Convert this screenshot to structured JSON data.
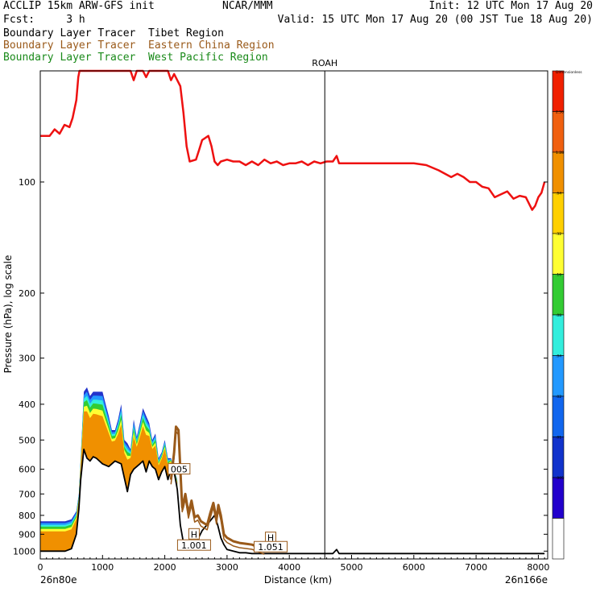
{
  "header": {
    "line1_left": "ACCLIP 15km ARW-GFS init",
    "line1_center": "NCAR/MMM",
    "line1_right": "Init: 12 UTC Mon 17 Aug 20",
    "line2_left": "Fcst:     3 h",
    "line2_right": "Valid: 15 UTC Mon 17 Aug 20 (00 JST Tue 18 Aug 20)",
    "legend": [
      {
        "prefix": "Boundary Layer Tracer",
        "region": "Tibet Region",
        "color": "#000000"
      },
      {
        "prefix": "Boundary Layer Tracer",
        "region": "Eastern China Region",
        "color": "#9a5a1a"
      },
      {
        "prefix": "Boundary Layer Tracer",
        "region": "West Pacific Region",
        "color": "#1a8a1a"
      }
    ]
  },
  "chart_data": {
    "type": "area",
    "xlabel": "Distance (km)",
    "ylabel": "Pressure (hPa), log scale",
    "xlim": [
      0,
      8150
    ],
    "ylim": [
      1050,
      50
    ],
    "y_scale": "log",
    "x_ticks": [
      "0",
      "1000",
      "2000",
      "3000",
      "4000",
      "5000",
      "6000",
      "7000",
      "8000"
    ],
    "y_ticks": [
      "100",
      "200",
      "300",
      "400",
      "500",
      "600",
      "700",
      "800",
      "900",
      "1000"
    ],
    "start_label": "26n80e",
    "end_label": "26n166e",
    "marker": {
      "label": "ROAH",
      "x": 4570
    },
    "tropopause_line": {
      "color": "#ee1111",
      "x": [
        0,
        150,
        230,
        310,
        390,
        470,
        520,
        580,
        610,
        630,
        650,
        700,
        800,
        900,
        1000,
        1100,
        1200,
        1300,
        1450,
        1500,
        1550,
        1600,
        1650,
        1700,
        1750,
        1800,
        1900,
        2000,
        2050,
        2100,
        2150,
        2200,
        2250,
        2300,
        2350,
        2400,
        2500,
        2550,
        2600,
        2700,
        2750,
        2800,
        2850,
        2900,
        3000,
        3100,
        3200,
        3300,
        3400,
        3500,
        3600,
        3700,
        3800,
        3900,
        4000,
        4100,
        4200,
        4300,
        4400,
        4500,
        4600,
        4700,
        4760,
        4800,
        4850,
        4900,
        5000,
        5200,
        5400,
        5600,
        5800,
        6000,
        6200,
        6400,
        6600,
        6700,
        6800,
        6900,
        7000,
        7100,
        7200,
        7300,
        7400,
        7500,
        7600,
        7700,
        7800,
        7900,
        7950,
        8000,
        8050,
        8100
      ],
      "y": [
        75,
        75,
        72,
        74,
        70,
        71,
        67,
        60,
        52,
        50,
        50,
        50,
        50,
        50,
        50,
        50,
        50,
        50,
        50,
        53,
        50,
        50,
        50,
        52,
        50,
        50,
        50,
        50,
        50,
        53,
        51,
        53,
        55,
        65,
        80,
        88,
        87,
        82,
        77,
        75,
        80,
        88,
        90,
        88,
        87,
        88,
        88,
        90,
        88,
        90,
        87,
        89,
        88,
        90,
        89,
        89,
        88,
        90,
        88,
        89,
        88,
        88,
        85,
        89,
        89,
        89,
        89,
        89,
        89,
        89,
        89,
        89,
        90,
        93,
        97,
        95,
        97,
        100,
        100,
        103,
        104,
        110,
        108,
        106,
        111,
        109,
        110,
        119,
        116,
        110,
        107,
        100
      ]
    },
    "series": [
      {
        "name": "Tibet Region",
        "color": "#000000",
        "x": [
          0,
          200,
          400,
          500,
          580,
          620,
          650,
          700,
          750,
          800,
          850,
          900,
          950,
          1000,
          1100,
          1200,
          1300,
          1400,
          1450,
          1500,
          1550,
          1600,
          1650,
          1700,
          1750,
          1800,
          1850,
          1900,
          1950,
          2000,
          2050,
          2100,
          2150,
          2200,
          2250,
          2300,
          2350,
          2400,
          2500,
          2600,
          2700,
          2800,
          2850,
          2900,
          2950,
          3000,
          3100,
          3200,
          3300,
          3400,
          3500,
          3600,
          3800,
          4000,
          4200,
          4400,
          4600,
          4700,
          4760,
          4800,
          4900,
          5200,
          5600,
          6000,
          6400,
          6800,
          7200,
          7600,
          8000,
          8100
        ],
        "y": [
          1000,
          1000,
          1000,
          985,
          900,
          770,
          640,
          530,
          560,
          570,
          555,
          560,
          570,
          580,
          590,
          570,
          580,
          690,
          620,
          600,
          590,
          580,
          570,
          610,
          570,
          590,
          600,
          640,
          610,
          590,
          640,
          600,
          610,
          680,
          850,
          950,
          960,
          950,
          950,
          880,
          840,
          800,
          850,
          920,
          960,
          990,
          1000,
          1010,
          1010,
          1015,
          1015,
          1015,
          1015,
          1015,
          1015,
          1015,
          1015,
          1015,
          990,
          1015,
          1015,
          1015,
          1015,
          1015,
          1015,
          1015,
          1015,
          1015,
          1015,
          1015
        ]
      },
      {
        "name": "Eastern China Region",
        "color": "#9a5a1a",
        "x": [
          2100,
          2150,
          2180,
          2220,
          2250,
          2280,
          2300,
          2330,
          2380,
          2430,
          2480,
          2530,
          2580,
          2630,
          2680,
          2730,
          2780,
          2830,
          2860,
          2900,
          2950,
          3000,
          3050,
          3100,
          3200,
          3300,
          3400,
          3500,
          3600
        ],
        "y": [
          640,
          540,
          460,
          470,
          600,
          760,
          740,
          700,
          790,
          730,
          810,
          800,
          830,
          840,
          850,
          790,
          740,
          820,
          750,
          800,
          900,
          920,
          930,
          940,
          950,
          955,
          960,
          975,
          990
        ]
      },
      {
        "name": "West Pacific Region",
        "color": "#1a8a1a",
        "x": [],
        "y": []
      }
    ],
    "tracer_top": {
      "x": [
        0,
        200,
        400,
        500,
        580,
        620,
        650,
        700,
        750,
        800,
        850,
        900,
        950,
        1000,
        1050,
        1100,
        1150,
        1200,
        1250,
        1300,
        1350,
        1400,
        1450,
        1500,
        1550,
        1600,
        1650,
        1700,
        1750,
        1800,
        1850,
        1900,
        1950,
        2000,
        2050,
        2100,
        2150,
        2200
      ],
      "y": [
        830,
        830,
        830,
        820,
        780,
        700,
        560,
        370,
        360,
        380,
        370,
        370,
        370,
        370,
        400,
        430,
        470,
        470,
        440,
        400,
        500,
        510,
        530,
        440,
        490,
        450,
        410,
        430,
        450,
        500,
        480,
        560,
        540,
        500,
        560,
        560,
        600,
        640
      ]
    },
    "colorbar": {
      "labels": [
        "Dimensionless",
        "2.56",
        "1.28",
        ".64",
        ".32",
        ".16",
        ".08",
        ".04",
        ".02",
        ".01",
        ".005"
      ],
      "colors": [
        "#f02000",
        "#f06010",
        "#f09000",
        "#ffd000",
        "#ffff33",
        "#33cc33",
        "#33eedd",
        "#2299ff",
        "#1166ee",
        "#1133cc",
        "#2200cc",
        "#ffffff"
      ]
    },
    "contour_labels": [
      {
        "text": "005",
        "x": 2230,
        "y": 600
      },
      {
        "text": "H",
        "x": 2470,
        "y": 900
      },
      {
        "text": "1.001",
        "x": 2470,
        "y": 965
      },
      {
        "text": "H",
        "x": 3700,
        "y": 920
      },
      {
        "text": "1.051",
        "x": 3700,
        "y": 975
      }
    ],
    "grid": false,
    "legend_position": "top-left"
  }
}
